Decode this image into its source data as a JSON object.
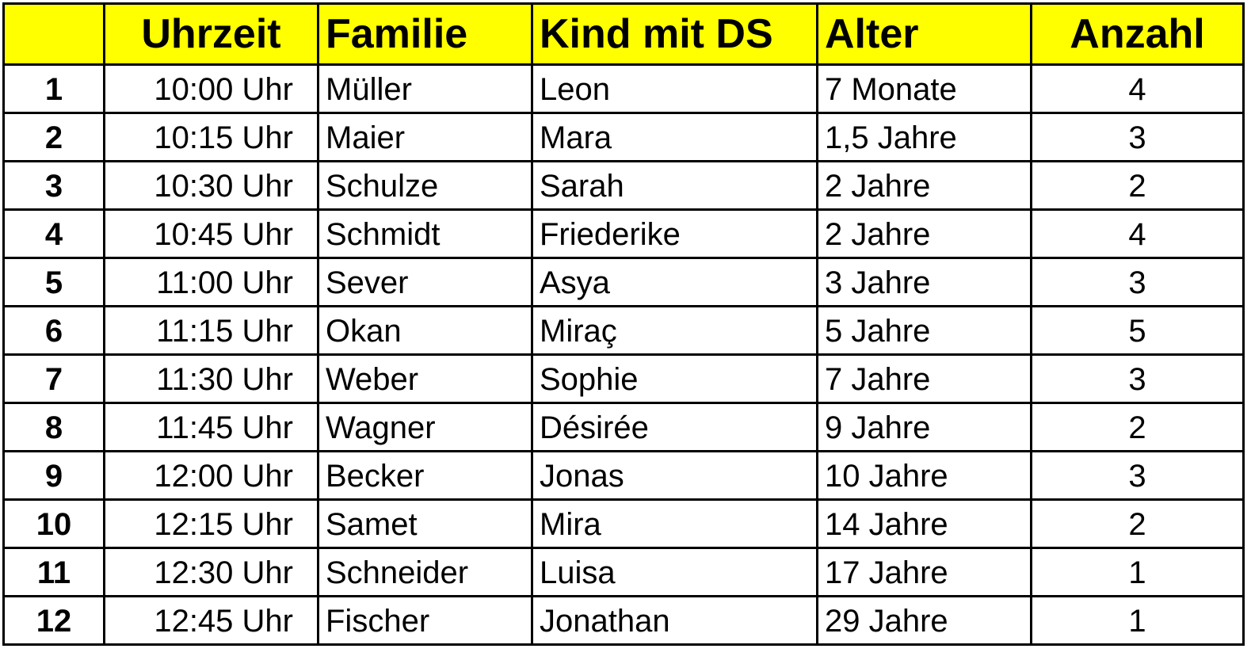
{
  "table": {
    "headers": {
      "index": "",
      "time": "Uhrzeit",
      "family": "Familie",
      "child": "Kind mit DS",
      "age": "Alter",
      "count": "Anzahl"
    },
    "rows": [
      {
        "index": "1",
        "time": "10:00 Uhr",
        "family": "Müller",
        "child": "Leon",
        "age": "7 Monate",
        "count": "4"
      },
      {
        "index": "2",
        "time": "10:15 Uhr",
        "family": "Maier",
        "child": "Mara",
        "age": "1,5 Jahre",
        "count": "3"
      },
      {
        "index": "3",
        "time": "10:30 Uhr",
        "family": "Schulze",
        "child": "Sarah",
        "age": "2 Jahre",
        "count": "2"
      },
      {
        "index": "4",
        "time": "10:45 Uhr",
        "family": "Schmidt",
        "child": "Friederike",
        "age": "2 Jahre",
        "count": "4"
      },
      {
        "index": "5",
        "time": "11:00 Uhr",
        "family": "Sever",
        "child": "Asya",
        "age": "3 Jahre",
        "count": "3"
      },
      {
        "index": "6",
        "time": "11:15 Uhr",
        "family": "Okan",
        "child": "Miraç",
        "age": "5 Jahre",
        "count": "5"
      },
      {
        "index": "7",
        "time": "11:30 Uhr",
        "family": "Weber",
        "child": "Sophie",
        "age": "7 Jahre",
        "count": "3"
      },
      {
        "index": "8",
        "time": "11:45 Uhr",
        "family": "Wagner",
        "child": "Désirée",
        "age": "9 Jahre",
        "count": "2"
      },
      {
        "index": "9",
        "time": "12:00 Uhr",
        "family": "Becker",
        "child": "Jonas",
        "age": "10 Jahre",
        "count": "3"
      },
      {
        "index": "10",
        "time": "12:15 Uhr",
        "family": "Samet",
        "child": "Mira",
        "age": "14 Jahre",
        "count": "2"
      },
      {
        "index": "11",
        "time": "12:30 Uhr",
        "family": "Schneider",
        "child": "Luisa",
        "age": "17 Jahre",
        "count": "1"
      },
      {
        "index": "12",
        "time": "12:45 Uhr",
        "family": "Fischer",
        "child": "Jonathan",
        "age": "29 Jahre",
        "count": "1"
      }
    ]
  },
  "colors": {
    "header_background": "#ffff00",
    "border": "#000000",
    "text": "#000000",
    "background": "#ffffff"
  }
}
